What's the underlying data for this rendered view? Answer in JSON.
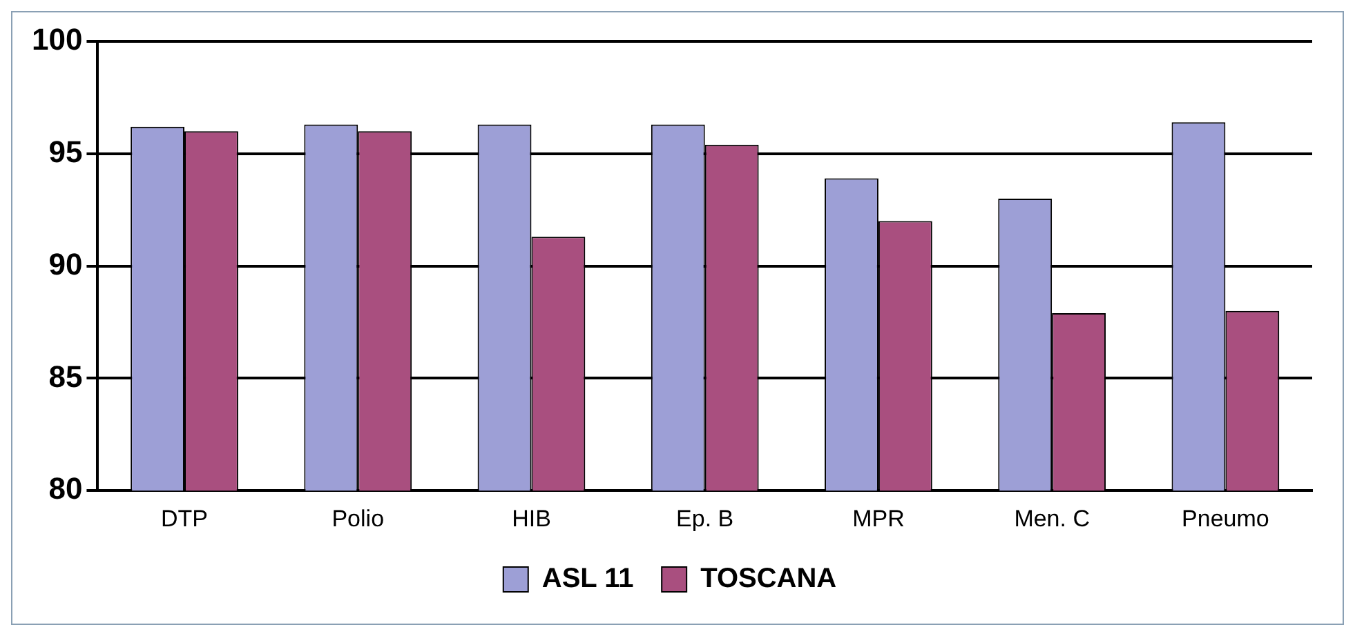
{
  "chart_data": {
    "type": "bar",
    "categories": [
      "DTP",
      "Polio",
      "HIB",
      "Ep. B",
      "MPR",
      "Men. C",
      "Pneumo"
    ],
    "series": [
      {
        "name": "ASL 11",
        "color": "#9d9fd6",
        "values": [
          96.2,
          96.3,
          96.3,
          96.3,
          93.9,
          93.0,
          96.4
        ]
      },
      {
        "name": "TOSCANA",
        "color": "#a94f7f",
        "values": [
          96.0,
          96.0,
          91.3,
          95.4,
          92.0,
          87.9,
          88.0
        ]
      }
    ],
    "ylim": [
      80,
      100
    ],
    "yticks": [
      80,
      85,
      90,
      95,
      100
    ],
    "grid": "y",
    "legend": "bottom"
  }
}
